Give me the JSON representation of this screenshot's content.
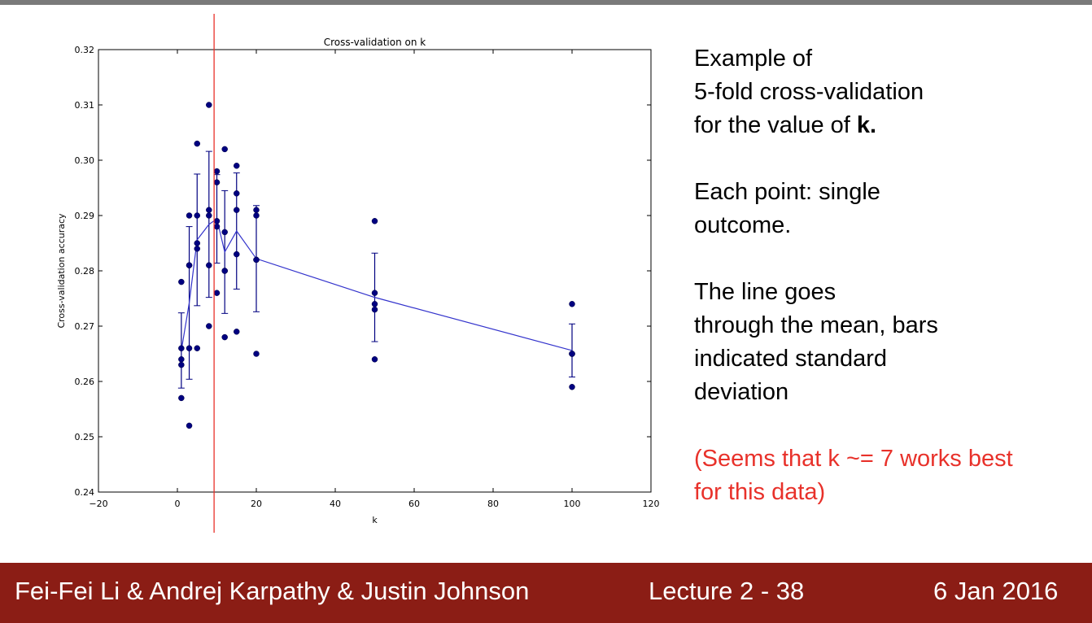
{
  "slide": {
    "text_lines": [
      [
        "Example of",
        "5-fold cross-validation",
        "for the value of "
      ],
      [
        "Each point: single",
        "outcome."
      ],
      [
        "The line goes",
        "through the mean, bars",
        "indicated standard",
        "deviation"
      ]
    ],
    "bold_k": "k.",
    "note_lines": [
      "(Seems that k ~= 7 works best",
      "for this data)"
    ]
  },
  "footer": {
    "authors": "Fei-Fei Li & Andrej Karpathy & Justin Johnson",
    "lecture": "Lecture 2 - 38",
    "date": "6 Jan 2016"
  },
  "colors": {
    "series": "#000080",
    "line": "#3333cc",
    "marker": "#e8312a",
    "footer_bg": "#8b1d15",
    "note": "#e8312a"
  },
  "chart_data": {
    "type": "scatter",
    "title": "Cross-validation on k",
    "xlabel": "k",
    "ylabel": "Cross-validation accuracy",
    "xlim": [
      -20,
      120
    ],
    "ylim": [
      0.24,
      0.32
    ],
    "xticks": [
      -20,
      0,
      20,
      40,
      60,
      80,
      100,
      120
    ],
    "xtick_labels": [
      "−20",
      "0",
      "20",
      "40",
      "60",
      "80",
      "100",
      "120"
    ],
    "yticks": [
      0.24,
      0.25,
      0.26,
      0.27,
      0.28,
      0.29,
      0.3,
      0.31,
      0.32
    ],
    "ytick_labels": [
      "0.24",
      "0.25",
      "0.26",
      "0.27",
      "0.28",
      "0.29",
      "0.30",
      "0.31",
      "0.32"
    ],
    "grid": false,
    "vertical_marker_x": 9.3,
    "points": [
      [
        1,
        0.278
      ],
      [
        1,
        0.266
      ],
      [
        1,
        0.264
      ],
      [
        1,
        0.263
      ],
      [
        1,
        0.257
      ],
      [
        3,
        0.29
      ],
      [
        3,
        0.281
      ],
      [
        3,
        0.281
      ],
      [
        3,
        0.266
      ],
      [
        3,
        0.252
      ],
      [
        5,
        0.303
      ],
      [
        5,
        0.29
      ],
      [
        5,
        0.285
      ],
      [
        5,
        0.284
      ],
      [
        5,
        0.266
      ],
      [
        8,
        0.31
      ],
      [
        8,
        0.291
      ],
      [
        8,
        0.29
      ],
      [
        8,
        0.281
      ],
      [
        8,
        0.27
      ],
      [
        10,
        0.298
      ],
      [
        10,
        0.296
      ],
      [
        10,
        0.289
      ],
      [
        10,
        0.288
      ],
      [
        10,
        0.276
      ],
      [
        12,
        0.302
      ],
      [
        12,
        0.287
      ],
      [
        12,
        0.28
      ],
      [
        12,
        0.28
      ],
      [
        12,
        0.268
      ],
      [
        15,
        0.299
      ],
      [
        15,
        0.294
      ],
      [
        15,
        0.291
      ],
      [
        15,
        0.283
      ],
      [
        15,
        0.269
      ],
      [
        20,
        0.291
      ],
      [
        20,
        0.29
      ],
      [
        20,
        0.282
      ],
      [
        20,
        0.282
      ],
      [
        20,
        0.265
      ],
      [
        50,
        0.289
      ],
      [
        50,
        0.276
      ],
      [
        50,
        0.274
      ],
      [
        50,
        0.273
      ],
      [
        50,
        0.264
      ],
      [
        100,
        0.274
      ],
      [
        100,
        0.265
      ],
      [
        100,
        0.265
      ],
      [
        100,
        0.265
      ],
      [
        100,
        0.259
      ]
    ],
    "mean_series": {
      "x": [
        1,
        3,
        5,
        8,
        10,
        12,
        15,
        20,
        50,
        100
      ],
      "mean": [
        0.2656,
        0.2742,
        0.2856,
        0.2884,
        0.2894,
        0.2834,
        0.2872,
        0.2822,
        0.2752,
        0.2656
      ],
      "std": [
        0.0068,
        0.0138,
        0.0119,
        0.0132,
        0.008,
        0.0111,
        0.0105,
        0.0096,
        0.008,
        0.0048
      ]
    }
  }
}
